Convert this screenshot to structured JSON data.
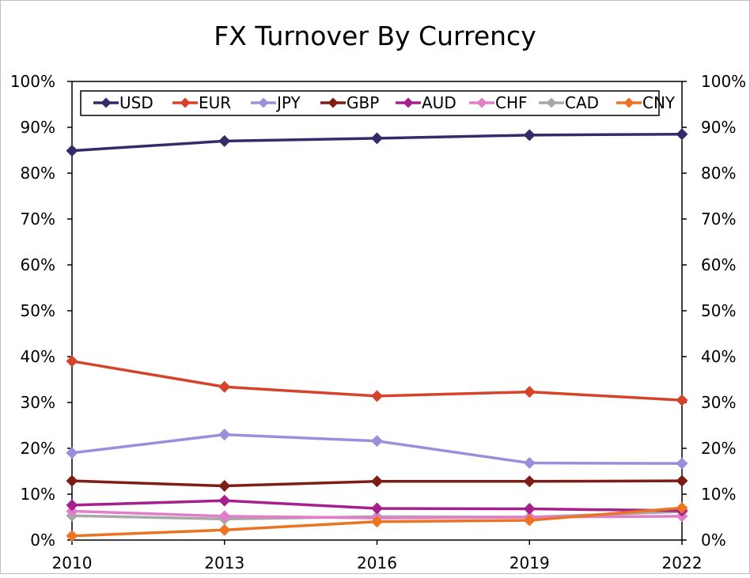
{
  "chart_data": {
    "type": "line",
    "title": "FX Turnover By Currency",
    "xlabel": "",
    "ylabel": "",
    "categories": [
      "2010",
      "2013",
      "2016",
      "2019",
      "2022"
    ],
    "ylim": [
      0,
      100
    ],
    "yticks": [
      "0%",
      "10%",
      "20%",
      "30%",
      "40%",
      "50%",
      "60%",
      "70%",
      "80%",
      "90%",
      "100%"
    ],
    "secondary_y_axis": true,
    "grid": false,
    "legend_position": "top",
    "series": [
      {
        "name": "USD",
        "color": "#332c6b",
        "values": [
          84.9,
          87.0,
          87.6,
          88.3,
          88.5
        ]
      },
      {
        "name": "EUR",
        "color": "#d5432a",
        "values": [
          39.0,
          33.4,
          31.4,
          32.3,
          30.5
        ]
      },
      {
        "name": "JPY",
        "color": "#9b8fdc",
        "values": [
          19.0,
          23.0,
          21.6,
          16.8,
          16.7
        ]
      },
      {
        "name": "GBP",
        "color": "#7d1d14",
        "values": [
          12.9,
          11.8,
          12.8,
          12.8,
          12.9
        ]
      },
      {
        "name": "AUD",
        "color": "#a5208c",
        "values": [
          7.6,
          8.6,
          6.9,
          6.8,
          6.4
        ]
      },
      {
        "name": "CHF",
        "color": "#e27dc8",
        "values": [
          6.3,
          5.2,
          4.8,
          5.0,
          5.2
        ]
      },
      {
        "name": "CAD",
        "color": "#a8a8a8",
        "values": [
          5.3,
          4.6,
          5.1,
          5.0,
          6.2
        ]
      },
      {
        "name": "CNY",
        "color": "#ec7323",
        "values": [
          0.9,
          2.2,
          4.0,
          4.3,
          7.0
        ]
      }
    ]
  }
}
